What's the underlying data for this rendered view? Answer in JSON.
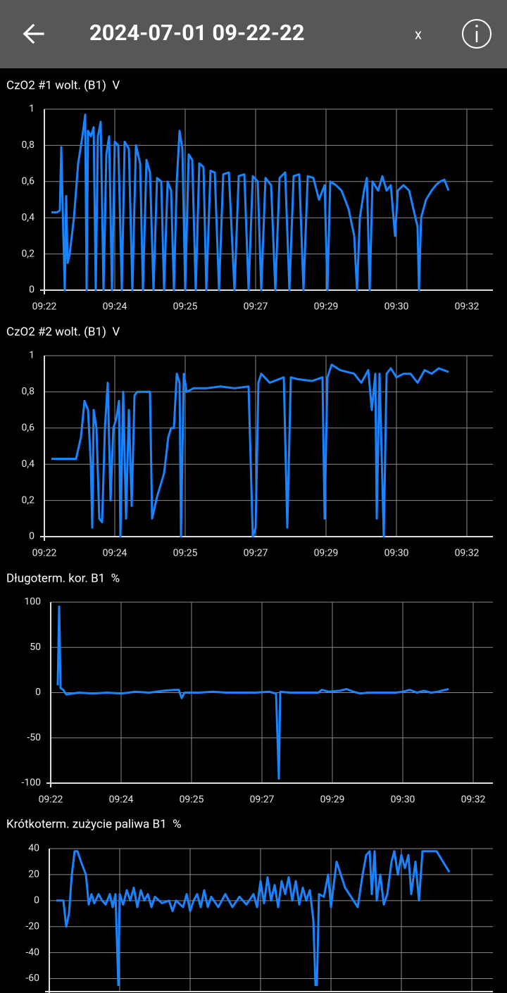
{
  "header": {
    "title": "2024-07-01 09-22-22",
    "close": "x"
  },
  "chart_data": [
    {
      "type": "line",
      "title": "CzO2 #1 wolt. (B1)  V",
      "color": "#1a84ff",
      "grid": true,
      "xlim": [
        0,
        600
      ],
      "xticks": [
        {
          "value": 0,
          "label": "09:22"
        },
        {
          "value": 100,
          "label": "09:24"
        },
        {
          "value": 200,
          "label": "09:25"
        },
        {
          "value": 300,
          "label": "09:27"
        },
        {
          "value": 400,
          "label": "09:29"
        },
        {
          "value": 500,
          "label": "09:30"
        },
        {
          "value": 600,
          "label": "09:32"
        }
      ],
      "ylim": [
        0,
        1
      ],
      "yticks": [
        0,
        {
          "value": 0.2,
          "label": "0,2"
        },
        {
          "value": 0.4,
          "label": "0,4"
        },
        {
          "value": 0.6,
          "label": "0,6"
        },
        {
          "value": 0.8,
          "label": "0,8"
        },
        1
      ],
      "x": [
        10,
        18,
        22,
        24,
        27,
        29,
        31,
        33,
        36,
        42,
        48,
        54,
        58,
        60,
        62,
        66,
        70,
        73,
        76,
        80,
        84,
        88,
        92,
        96,
        100,
        105,
        110,
        114,
        120,
        125,
        130,
        136,
        140,
        145,
        150,
        155,
        160,
        166,
        170,
        175,
        180,
        184,
        188,
        192,
        196,
        200,
        205,
        210,
        215,
        220,
        226,
        230,
        236,
        242,
        248,
        254,
        262,
        270,
        276,
        284,
        290,
        296,
        303,
        308,
        314,
        322,
        328,
        334,
        342,
        348,
        354,
        362,
        368,
        374,
        382,
        390,
        398,
        402,
        406,
        414,
        422,
        432,
        440,
        444,
        448,
        454,
        458,
        462,
        466,
        474,
        480,
        486,
        492,
        498,
        502,
        510,
        518,
        524,
        530,
        532,
        535,
        542,
        550,
        556,
        562,
        568,
        574
      ],
      "values": [
        0.43,
        0.43,
        0.44,
        0.79,
        0.3,
        0,
        0.52,
        0.15,
        0.2,
        0.4,
        0.7,
        0.85,
        0.97,
        0,
        0.88,
        0.85,
        0.9,
        0,
        0.85,
        0.93,
        0,
        0.75,
        0.85,
        0,
        0.82,
        0.8,
        0,
        0.82,
        0.78,
        0,
        0.8,
        0.7,
        0,
        0.72,
        0.65,
        0,
        0.62,
        0.6,
        0,
        0.6,
        0.55,
        0,
        0.6,
        0.88,
        0.78,
        0,
        0.75,
        0.72,
        0,
        0.7,
        0.68,
        0,
        0.66,
        0.65,
        0,
        0.64,
        0.65,
        0,
        0.63,
        0.64,
        0,
        0.63,
        0.6,
        0,
        0.62,
        0.58,
        0,
        0.62,
        0.65,
        0,
        0.63,
        0.64,
        0,
        0.63,
        0.62,
        0.5,
        0.58,
        0,
        0.6,
        0.58,
        0.55,
        0.45,
        0.3,
        0,
        0.4,
        0.55,
        0.62,
        0,
        0.6,
        0.55,
        0.63,
        0.55,
        0.58,
        0.3,
        0.55,
        0.58,
        0.55,
        0.45,
        0.35,
        0,
        0.4,
        0.5,
        0.55,
        0.58,
        0.6,
        0.61,
        0.55
      ]
    },
    {
      "type": "line",
      "title": "CzO2 #2 wolt. (B1)  V",
      "color": "#1a84ff",
      "grid": true,
      "xlim": [
        0,
        600
      ],
      "xticks": [
        {
          "value": 0,
          "label": "09:22"
        },
        {
          "value": 100,
          "label": "09:24"
        },
        {
          "value": 200,
          "label": "09:25"
        },
        {
          "value": 300,
          "label": "09:27"
        },
        {
          "value": 400,
          "label": "09:29"
        },
        {
          "value": 500,
          "label": "09:30"
        },
        {
          "value": 600,
          "label": "09:32"
        }
      ],
      "ylim": [
        0,
        1
      ],
      "yticks": [
        0,
        {
          "value": 0.2,
          "label": "0,2"
        },
        {
          "value": 0.4,
          "label": "0,4"
        },
        {
          "value": 0.6,
          "label": "0,6"
        },
        {
          "value": 0.8,
          "label": "0,8"
        },
        1
      ],
      "x": [
        10,
        45,
        52,
        57,
        62,
        66,
        68,
        70,
        74,
        78,
        82,
        86,
        90,
        94,
        98,
        102,
        106,
        108,
        112,
        116,
        120,
        124,
        128,
        132,
        140,
        150,
        153,
        160,
        170,
        176,
        180,
        184,
        188,
        192,
        194,
        198,
        202,
        212,
        230,
        250,
        270,
        290,
        296,
        300,
        304,
        308,
        320,
        340,
        345,
        350,
        360,
        380,
        395,
        398,
        402,
        408,
        420,
        440,
        450,
        460,
        465,
        470,
        472,
        476,
        482,
        486,
        492,
        500,
        510,
        520,
        530,
        540,
        550,
        560,
        574
      ],
      "values": [
        0.43,
        0.43,
        0.55,
        0.75,
        0.7,
        0.4,
        0.05,
        0.7,
        0.6,
        0.1,
        0.08,
        0.6,
        0.85,
        0.2,
        0.6,
        0.65,
        0.75,
        0,
        0.8,
        0.1,
        0.7,
        0.17,
        0.78,
        0.8,
        0.8,
        0.8,
        0.1,
        0.22,
        0.35,
        0.55,
        0.6,
        0.6,
        0.9,
        0.85,
        0,
        0.9,
        0.8,
        0.82,
        0.82,
        0.83,
        0.82,
        0.83,
        0,
        0.05,
        0.85,
        0.9,
        0.85,
        0.88,
        0.05,
        0.88,
        0.87,
        0.86,
        0.88,
        0.1,
        0.88,
        0.95,
        0.92,
        0.9,
        0.85,
        0.92,
        0.7,
        0.9,
        0.1,
        0.9,
        0,
        0.9,
        0.93,
        0.88,
        0.9,
        0.9,
        0.85,
        0.92,
        0.9,
        0.93,
        0.91
      ]
    },
    {
      "type": "line",
      "title": "Długoterm. kor. B1  %",
      "color": "#1a84ff",
      "grid": true,
      "xlim": [
        0,
        600
      ],
      "xticks": [
        {
          "value": 0,
          "label": "09:22"
        },
        {
          "value": 100,
          "label": "09:24"
        },
        {
          "value": 200,
          "label": "09:25"
        },
        {
          "value": 300,
          "label": "09:27"
        },
        {
          "value": 400,
          "label": "09:29"
        },
        {
          "value": 500,
          "label": "09:30"
        },
        {
          "value": 600,
          "label": "09:32"
        }
      ],
      "ylim": [
        -100,
        100
      ],
      "yticks": [
        -100,
        -50,
        0,
        50,
        100
      ],
      "x": [
        10,
        12,
        14,
        18,
        22,
        40,
        60,
        80,
        100,
        120,
        140,
        160,
        175,
        182,
        186,
        190,
        210,
        230,
        250,
        270,
        290,
        310,
        320,
        324,
        326,
        340,
        360,
        380,
        385,
        395,
        410,
        420,
        430,
        440,
        450,
        470,
        490,
        500,
        510,
        520,
        530,
        540,
        550,
        560,
        565
      ],
      "values": [
        8,
        95,
        5,
        3,
        -2,
        0,
        -1,
        0,
        -1,
        1,
        0,
        2,
        3,
        3,
        -6,
        0,
        0,
        1,
        0,
        0,
        0,
        1,
        -1,
        -95,
        1,
        0,
        0,
        0,
        3,
        1,
        2,
        4,
        1,
        -1,
        0,
        0,
        0,
        1,
        3,
        0,
        2,
        0,
        1,
        3,
        4
      ]
    },
    {
      "type": "line",
      "title": "Krótkoterm. zużycie paliwa B1  %",
      "color": "#1a84ff",
      "grid": true,
      "xlim": [
        0,
        600
      ],
      "xticks": [
        0,
        100,
        200,
        300,
        400,
        500,
        600
      ],
      "ylim": [
        -70,
        40
      ],
      "yticks": [
        -60,
        -40,
        -20,
        0,
        20,
        40
      ],
      "x": [
        10,
        20,
        24,
        28,
        32,
        36,
        40,
        45,
        52,
        56,
        60,
        64,
        70,
        75,
        80,
        86,
        90,
        94,
        98,
        100,
        105,
        110,
        115,
        120,
        125,
        130,
        135,
        140,
        145,
        150,
        160,
        170,
        175,
        180,
        190,
        195,
        200,
        205,
        210,
        215,
        220,
        225,
        230,
        240,
        250,
        260,
        270,
        280,
        290,
        295,
        300,
        305,
        310,
        315,
        320,
        325,
        330,
        335,
        340,
        345,
        350,
        355,
        360,
        365,
        370,
        375,
        378,
        380,
        383,
        390,
        396,
        400,
        408,
        420,
        438,
        445,
        450,
        455,
        458,
        462,
        465,
        470,
        475,
        480,
        486,
        490,
        495,
        500,
        505,
        510,
        514,
        520,
        525,
        530,
        535,
        550,
        568
      ],
      "values": [
        0,
        0,
        -20,
        -10,
        20,
        38,
        38,
        30,
        20,
        -3,
        5,
        -2,
        5,
        0,
        -3,
        5,
        -5,
        5,
        -65,
        5,
        -3,
        8,
        0,
        10,
        -5,
        8,
        0,
        5,
        -5,
        3,
        -2,
        0,
        -8,
        0,
        -5,
        5,
        -8,
        0,
        5,
        -5,
        8,
        -5,
        3,
        -5,
        5,
        -5,
        3,
        -3,
        5,
        -5,
        15,
        -2,
        18,
        0,
        12,
        -5,
        15,
        5,
        18,
        0,
        15,
        -3,
        10,
        0,
        8,
        -15,
        -65,
        -65,
        5,
        3,
        20,
        -5,
        30,
        10,
        -5,
        20,
        35,
        38,
        5,
        38,
        0,
        20,
        -3,
        5,
        30,
        38,
        20,
        35,
        25,
        35,
        5,
        30,
        0,
        38,
        38,
        38,
        22
      ]
    }
  ]
}
